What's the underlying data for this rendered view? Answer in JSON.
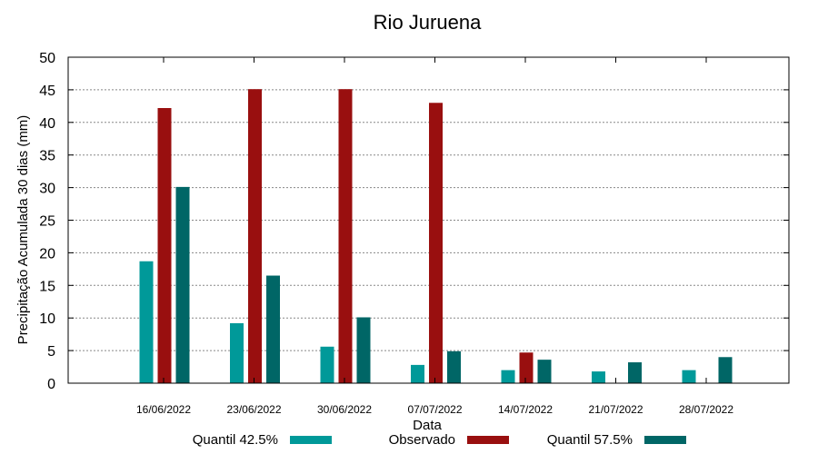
{
  "chart_data": {
    "type": "bar",
    "title": "Rio Juruena",
    "xlabel": "Data",
    "ylabel": "Precipitação Acumulada 30 dias (mm)",
    "ylim": [
      0,
      50
    ],
    "yticks": [
      0,
      5,
      10,
      15,
      20,
      25,
      30,
      35,
      40,
      45,
      50
    ],
    "grid": true,
    "legend_position": "bottom",
    "categories": [
      "16/06/2022",
      "23/06/2022",
      "30/06/2022",
      "07/07/2022",
      "14/07/2022",
      "21/07/2022",
      "28/07/2022"
    ],
    "series": [
      {
        "name": "Quantil 42.5%",
        "color": "#009999",
        "values": [
          18.7,
          9.2,
          5.6,
          2.8,
          2.0,
          1.8,
          2.0
        ]
      },
      {
        "name": "Observado",
        "color": "#990f0f",
        "values": [
          42.2,
          45.1,
          45.1,
          43.0,
          4.7,
          null,
          null
        ]
      },
      {
        "name": "Quantil 57.5%",
        "color": "#006666",
        "values": [
          30.1,
          16.5,
          10.1,
          4.9,
          3.6,
          3.2,
          4.0
        ]
      }
    ]
  }
}
